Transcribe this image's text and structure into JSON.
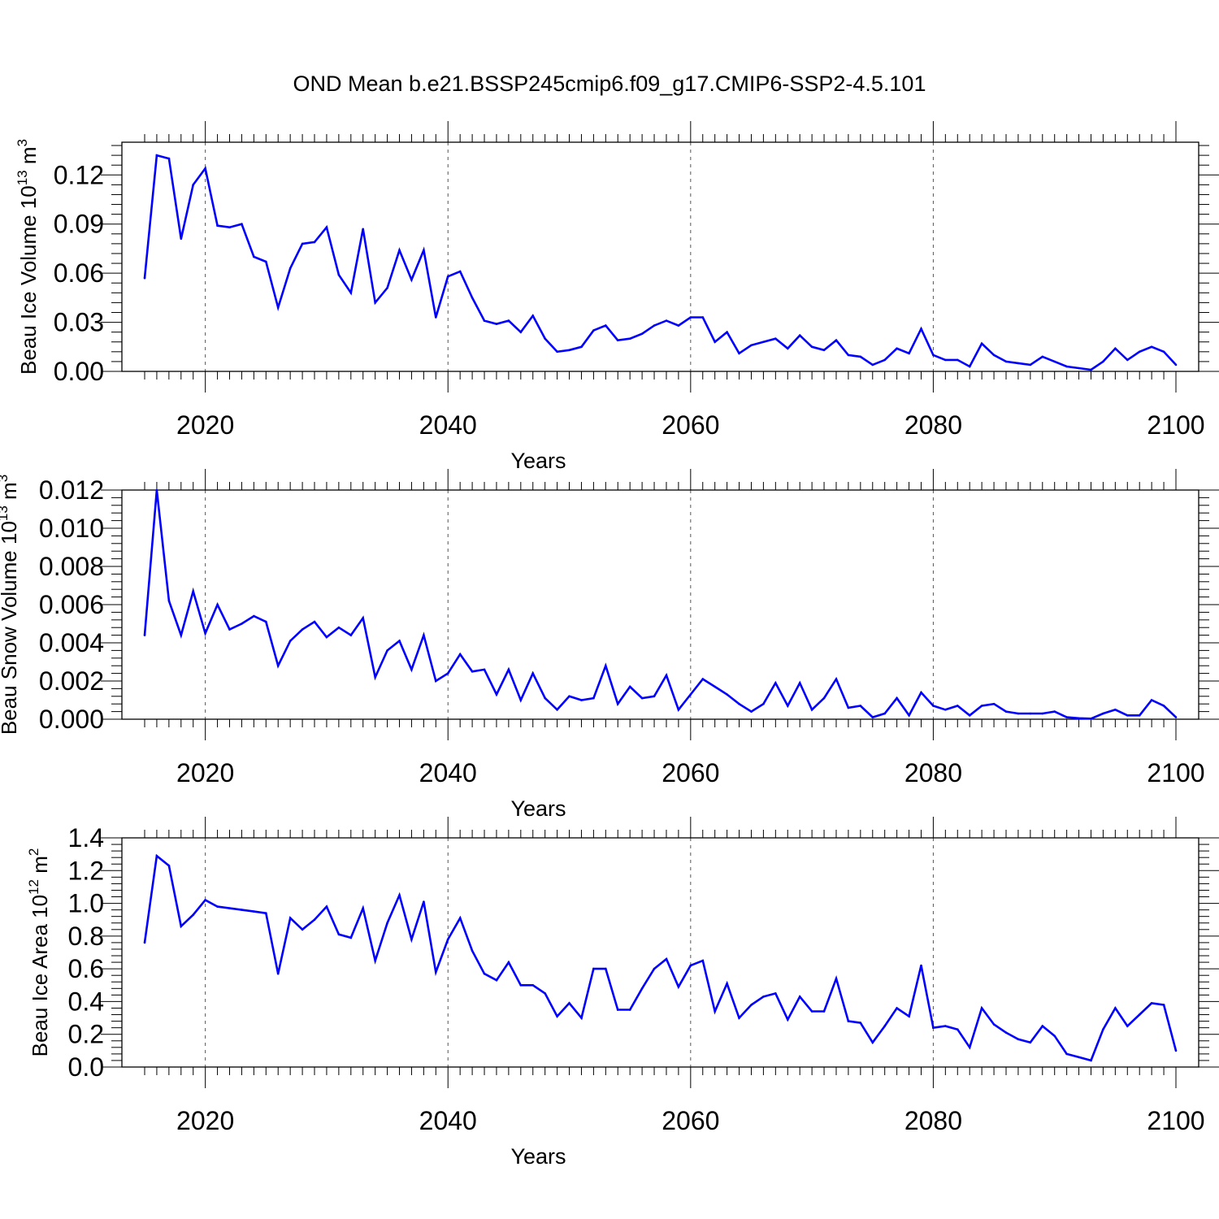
{
  "page": {
    "title": "OND Mean b.e21.BSSP245cmip6.f09_g17.CMIP6-SSP2-4.5.101",
    "line_color": "#0000ff"
  },
  "chart_data": [
    {
      "type": "line",
      "xlabel": "Years",
      "ylabel": {
        "base": "Beau Ice Volume 10",
        "exp": "13",
        "unit": " m",
        "unit_exp": "3"
      },
      "xlim": [
        2015,
        2100
      ],
      "ylim": [
        0,
        0.14
      ],
      "xticks": [
        2020,
        2040,
        2060,
        2080,
        2100
      ],
      "xtick_labels": [
        "2020",
        "2040",
        "2060",
        "2080",
        "2100"
      ],
      "yticks": [
        0,
        0.03,
        0.06,
        0.09,
        0.12
      ],
      "ytick_labels": [
        "0.00",
        "0.03",
        "0.06",
        "0.09",
        "0.12"
      ],
      "grid": "dashed vertical lines at major x ticks",
      "series": [
        {
          "x_start": 2015,
          "values": [
            0.057,
            0.132,
            0.13,
            0.081,
            0.114,
            0.124,
            0.089,
            0.088,
            0.09,
            0.07,
            0.067,
            0.039,
            0.063,
            0.078,
            0.079,
            0.088,
            0.059,
            0.048,
            0.087,
            0.042,
            0.051,
            0.074,
            0.056,
            0.074,
            0.033,
            0.058,
            0.061,
            0.045,
            0.031,
            0.029,
            0.031,
            0.024,
            0.034,
            0.02,
            0.012,
            0.013,
            0.015,
            0.025,
            0.028,
            0.019,
            0.02,
            0.023,
            0.028,
            0.031,
            0.028,
            0.033,
            0.033,
            0.018,
            0.024,
            0.011,
            0.016,
            0.018,
            0.02,
            0.014,
            0.022,
            0.015,
            0.013,
            0.019,
            0.01,
            0.009,
            0.004,
            0.007,
            0.014,
            0.011,
            0.026,
            0.01,
            0.007,
            0.007,
            0.003,
            0.017,
            0.01,
            0.006,
            0.005,
            0.004,
            0.009,
            0.006,
            0.003,
            0.002,
            0.001,
            0.006,
            0.014,
            0.007,
            0.012,
            0.015,
            0.012,
            0.004
          ]
        }
      ]
    },
    {
      "type": "line",
      "xlabel": "Years",
      "ylabel": {
        "base": "Beau Snow Volume 10",
        "exp": "13",
        "unit": " m",
        "unit_exp": "3"
      },
      "xlim": [
        2015,
        2100
      ],
      "ylim": [
        0,
        0.012
      ],
      "xticks": [
        2020,
        2040,
        2060,
        2080,
        2100
      ],
      "xtick_labels": [
        "2020",
        "2040",
        "2060",
        "2080",
        "2100"
      ],
      "yticks": [
        0,
        0.002,
        0.004,
        0.006,
        0.008,
        0.01,
        0.012
      ],
      "ytick_labels": [
        "0.000",
        "0.002",
        "0.004",
        "0.006",
        "0.008",
        "0.010",
        "0.012"
      ],
      "grid": "dashed vertical lines at major x ticks",
      "series": [
        {
          "x_start": 2015,
          "values": [
            0.0044,
            0.012,
            0.0062,
            0.0044,
            0.0067,
            0.0045,
            0.006,
            0.0047,
            0.005,
            0.0054,
            0.0051,
            0.0028,
            0.0041,
            0.0047,
            0.0051,
            0.0043,
            0.0048,
            0.0044,
            0.0053,
            0.0022,
            0.0036,
            0.0041,
            0.0026,
            0.0044,
            0.002,
            0.0024,
            0.0034,
            0.0025,
            0.0026,
            0.0013,
            0.0026,
            0.001,
            0.0024,
            0.0011,
            0.0005,
            0.0012,
            0.001,
            0.0011,
            0.0028,
            0.0008,
            0.0017,
            0.0011,
            0.0012,
            0.0023,
            0.0005,
            0.0013,
            0.0021,
            0.0017,
            0.0013,
            0.0008,
            0.0004,
            0.0008,
            0.0019,
            0.0007,
            0.0019,
            0.0005,
            0.0011,
            0.0021,
            0.0006,
            0.0007,
            0.0001,
            0.0003,
            0.0011,
            0.0002,
            0.0014,
            0.0007,
            0.0005,
            0.0007,
            0.0002,
            0.0007,
            0.0008,
            0.0004,
            0.0003,
            0.0003,
            0.0003,
            0.0004,
            0.0001,
            5e-05,
            3e-05,
            0.0003,
            0.0005,
            0.0002,
            0.0002,
            0.001,
            0.0007,
            0.0001
          ]
        }
      ]
    },
    {
      "type": "line",
      "xlabel": "Years",
      "ylabel": {
        "base": "Beau Ice Area 10",
        "exp": "12",
        "unit": " m",
        "unit_exp": "2"
      },
      "xlim": [
        2015,
        2100
      ],
      "ylim": [
        0,
        1.4
      ],
      "xticks": [
        2020,
        2040,
        2060,
        2080,
        2100
      ],
      "xtick_labels": [
        "2020",
        "2040",
        "2060",
        "2080",
        "2100"
      ],
      "yticks": [
        0,
        0.2,
        0.4,
        0.6,
        0.8,
        1.0,
        1.2,
        1.4
      ],
      "ytick_labels": [
        "0.0",
        "0.2",
        "0.4",
        "0.6",
        "0.8",
        "1.0",
        "1.2",
        "1.4"
      ],
      "grid": "dashed vertical lines at major x ticks",
      "series": [
        {
          "x_start": 2015,
          "values": [
            0.76,
            1.29,
            1.23,
            0.86,
            0.93,
            1.02,
            0.98,
            0.97,
            0.96,
            0.95,
            0.94,
            0.57,
            0.91,
            0.84,
            0.9,
            0.98,
            0.81,
            0.79,
            0.97,
            0.65,
            0.88,
            1.05,
            0.78,
            1.01,
            0.58,
            0.78,
            0.91,
            0.71,
            0.57,
            0.53,
            0.64,
            0.5,
            0.5,
            0.45,
            0.31,
            0.39,
            0.3,
            0.6,
            0.6,
            0.35,
            0.35,
            0.48,
            0.6,
            0.66,
            0.49,
            0.62,
            0.65,
            0.34,
            0.51,
            0.3,
            0.38,
            0.43,
            0.45,
            0.29,
            0.43,
            0.34,
            0.34,
            0.54,
            0.28,
            0.27,
            0.15,
            0.25,
            0.36,
            0.31,
            0.62,
            0.24,
            0.25,
            0.23,
            0.12,
            0.36,
            0.26,
            0.21,
            0.17,
            0.15,
            0.25,
            0.19,
            0.08,
            0.06,
            0.04,
            0.23,
            0.36,
            0.25,
            0.32,
            0.39,
            0.38,
            0.1
          ]
        }
      ]
    }
  ]
}
